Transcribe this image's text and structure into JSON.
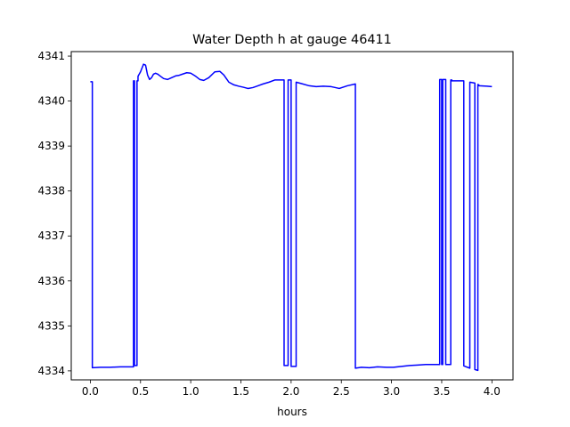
{
  "chart_data": {
    "type": "line",
    "title": "Water Depth h at gauge 46411",
    "xlabel": "hours",
    "ylabel": "",
    "xlim": [
      -0.19,
      4.21
    ],
    "ylim": [
      4333.8,
      4341.1
    ],
    "xticks": [
      0.0,
      0.5,
      1.0,
      1.5,
      2.0,
      2.5,
      3.0,
      3.5,
      4.0
    ],
    "xtick_labels": [
      "0.0",
      "0.5",
      "1.0",
      "1.5",
      "2.0",
      "2.5",
      "3.0",
      "3.5",
      "4.0"
    ],
    "yticks": [
      4334,
      4335,
      4336,
      4337,
      4338,
      4339,
      4340,
      4341
    ],
    "ytick_labels": [
      "4334",
      "4335",
      "4336",
      "4337",
      "4338",
      "4339",
      "4340",
      "4341"
    ],
    "grid": false,
    "series": [
      {
        "color": "#0000ff",
        "x": [
          0.0,
          0.02,
          0.02,
          0.1,
          0.2,
          0.3,
          0.43,
          0.43,
          0.44,
          0.44,
          0.465,
          0.465,
          0.475,
          0.475,
          0.5,
          0.53,
          0.55,
          0.57,
          0.59,
          0.61,
          0.63,
          0.65,
          0.67,
          0.7,
          0.73,
          0.77,
          0.81,
          0.85,
          0.88,
          0.92,
          0.96,
          1.0,
          1.05,
          1.09,
          1.13,
          1.18,
          1.24,
          1.29,
          1.33,
          1.38,
          1.43,
          1.48,
          1.52,
          1.57,
          1.62,
          1.67,
          1.72,
          1.78,
          1.84,
          1.89,
          1.93,
          1.93,
          1.97,
          1.97,
          2.0,
          2.0,
          2.05,
          2.05,
          2.1,
          2.18,
          2.25,
          2.32,
          2.4,
          2.48,
          2.56,
          2.64,
          2.64,
          2.7,
          2.78,
          2.86,
          2.95,
          3.02,
          3.1,
          3.18,
          3.26,
          3.34,
          3.42,
          3.48,
          3.48,
          3.5,
          3.5,
          3.51,
          3.51,
          3.54,
          3.54,
          3.59,
          3.59,
          3.6,
          3.6,
          3.72,
          3.72,
          3.78,
          3.78,
          3.83,
          3.83,
          3.86,
          3.86,
          3.87,
          3.87,
          3.95,
          4.0
        ],
        "y": [
          4340.43,
          4340.43,
          4334.07,
          4334.08,
          4334.08,
          4334.09,
          4334.09,
          4340.45,
          4340.45,
          4334.12,
          4334.12,
          4340.45,
          4340.45,
          4340.55,
          4340.65,
          4340.82,
          4340.8,
          4340.58,
          4340.48,
          4340.52,
          4340.6,
          4340.62,
          4340.6,
          4340.55,
          4340.5,
          4340.48,
          4340.52,
          4340.56,
          4340.57,
          4340.6,
          4340.63,
          4340.62,
          4340.55,
          4340.48,
          4340.46,
          4340.52,
          4340.65,
          4340.66,
          4340.58,
          4340.42,
          4340.36,
          4340.33,
          4340.31,
          4340.28,
          4340.3,
          4340.34,
          4340.38,
          4340.42,
          4340.47,
          4340.47,
          4340.47,
          4334.12,
          4334.12,
          4340.47,
          4340.47,
          4334.1,
          4334.1,
          4340.42,
          4340.39,
          4340.34,
          4340.32,
          4340.33,
          4340.32,
          4340.28,
          4340.34,
          4340.38,
          4334.06,
          4334.08,
          4334.07,
          4334.09,
          4334.08,
          4334.08,
          4334.1,
          4334.12,
          4334.13,
          4334.14,
          4334.14,
          4334.14,
          4340.48,
          4340.48,
          4334.14,
          4334.14,
          4340.48,
          4340.48,
          4334.14,
          4334.14,
          4340.47,
          4340.47,
          4340.45,
          4340.45,
          4334.11,
          4334.06,
          4340.42,
          4340.4,
          4334.03,
          4334.01,
          4340.37,
          4340.36,
          4340.34,
          4340.33,
          4340.32
        ]
      }
    ]
  }
}
